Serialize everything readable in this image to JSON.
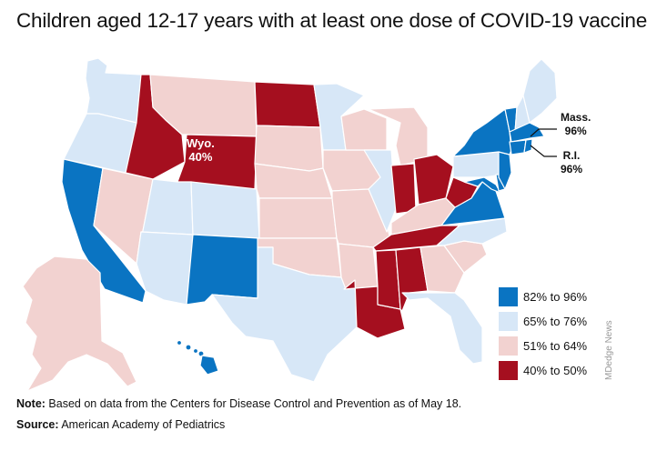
{
  "title": "Children aged 12-17 years with at least one dose of COVID-19 vaccine",
  "colors": {
    "cat_82_96": "#0a74c2",
    "cat_65_76": "#d7e7f7",
    "cat_51_64": "#f2d2d0",
    "cat_40_50": "#a50f1f"
  },
  "legend": [
    {
      "label": "82% to 96%",
      "color_key": "cat_82_96"
    },
    {
      "label": "65% to 76%",
      "color_key": "cat_65_76"
    },
    {
      "label": "51% to 64%",
      "color_key": "cat_51_64"
    },
    {
      "label": "40% to 50%",
      "color_key": "cat_40_50"
    }
  ],
  "callouts": {
    "wyo": {
      "name": "Wyo.",
      "value": "40%"
    },
    "mass": {
      "name": "Mass.",
      "value": "96%"
    },
    "ri": {
      "name": "R.I.",
      "value": "96%"
    }
  },
  "states": {
    "WA": "cat_65_76",
    "OR": "cat_65_76",
    "CA": "cat_82_96",
    "NV": "cat_51_64",
    "ID": "cat_40_50",
    "MT": "cat_51_64",
    "WY": "cat_40_50",
    "UT": "cat_65_76",
    "AZ": "cat_65_76",
    "CO": "cat_65_76",
    "NM": "cat_82_96",
    "ND": "cat_40_50",
    "SD": "cat_51_64",
    "NE": "cat_51_64",
    "KS": "cat_51_64",
    "OK": "cat_51_64",
    "TX": "cat_65_76",
    "MN": "cat_65_76",
    "IA": "cat_51_64",
    "MO": "cat_51_64",
    "AR": "cat_51_64",
    "LA": "cat_40_50",
    "WI": "cat_51_64",
    "IL": "cat_65_76",
    "MI": "cat_51_64",
    "IN": "cat_40_50",
    "OH": "cat_40_50",
    "KY": "cat_51_64",
    "TN": "cat_40_50",
    "MS": "cat_40_50",
    "AL": "cat_40_50",
    "GA": "cat_51_64",
    "FL": "cat_65_76",
    "SC": "cat_51_64",
    "NC": "cat_65_76",
    "VA": "cat_82_96",
    "WV": "cat_40_50",
    "PA": "cat_65_76",
    "NY": "cat_82_96",
    "NJ": "cat_82_96",
    "DE": "cat_82_96",
    "MD": "cat_82_96",
    "CT": "cat_82_96",
    "RI": "cat_82_96",
    "MA": "cat_82_96",
    "VT": "cat_82_96",
    "NH": "cat_65_76",
    "ME": "cat_65_76",
    "AK": "cat_51_64",
    "HI": "cat_82_96"
  },
  "credit": "MDedge News",
  "footer": {
    "note_label": "Note:",
    "note_text": " Based on data from the Centers for Disease Control and Prevention as of May 18.",
    "source_label": "Source:",
    "source_text": " American Academy of Pediatrics"
  }
}
